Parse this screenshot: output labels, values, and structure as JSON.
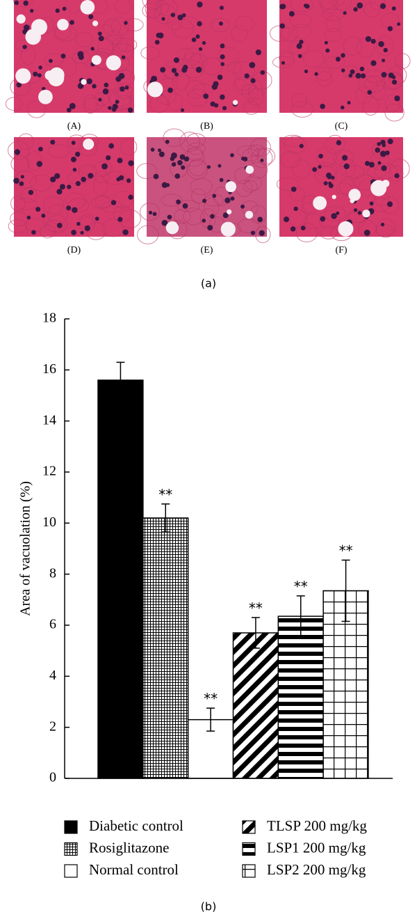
{
  "figure": {
    "panel_labels": [
      "(A)",
      "(B)",
      "(C)",
      "(D)",
      "(E)",
      "(F)"
    ],
    "captions": [
      "(a)",
      "(b)"
    ]
  },
  "chart_data": {
    "type": "bar",
    "y_label": "Area of vacuolation (%)",
    "categories": [
      null
    ],
    "series": [
      {
        "name": "Diabetic control",
        "color": "#000000",
        "pattern": "solid",
        "values": [
          15.6
        ],
        "errors": [
          0.7
        ],
        "significance": null
      },
      {
        "name": "Rosiglitazone",
        "color": "#000000",
        "pattern": "fine-grid",
        "values": [
          10.2
        ],
        "errors": [
          0.55
        ],
        "significance": "**"
      },
      {
        "name": "Normal control",
        "color": "#000000",
        "pattern": "none",
        "values": [
          2.3
        ],
        "errors": [
          0.45
        ],
        "significance": "**"
      },
      {
        "name": "TLSP 200 mg/kg",
        "color": "#000000",
        "pattern": "diagonal",
        "values": [
          5.7
        ],
        "errors": [
          0.6
        ],
        "significance": "**"
      },
      {
        "name": "LSP1 200 mg/kg",
        "color": "#000000",
        "pattern": "horizontal",
        "values": [
          6.35
        ],
        "errors": [
          0.8
        ],
        "significance": "**"
      },
      {
        "name": "LSP2 200 mg/kg",
        "color": "#000000",
        "pattern": "square-grid",
        "values": [
          7.35
        ],
        "errors": [
          1.2
        ],
        "significance": "**"
      }
    ],
    "ylim": [
      0,
      18
    ],
    "yticks": [
      0,
      2,
      4,
      6,
      8,
      10,
      12,
      14,
      16,
      18
    ]
  }
}
